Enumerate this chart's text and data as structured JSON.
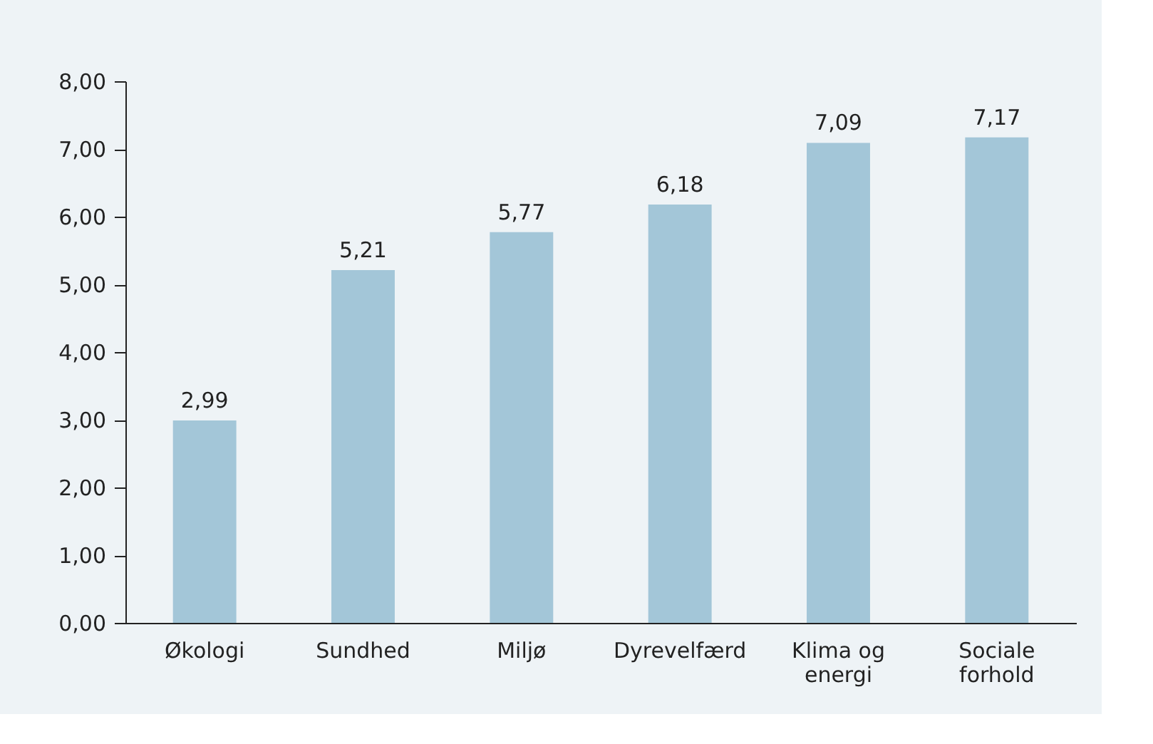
{
  "chart_data": {
    "type": "bar",
    "categories": [
      "Økologi",
      "Sundhed",
      "Miljø",
      "Dyrevelfærd",
      "Klima og energi",
      "Sociale forhold"
    ],
    "values": [
      2.99,
      5.21,
      5.77,
      6.18,
      7.09,
      7.17
    ],
    "value_labels": [
      "2,99",
      "5,21",
      "5,77",
      "6,18",
      "7,09",
      "7,17"
    ],
    "color": "#a3c6d8",
    "ylim": [
      0,
      8
    ],
    "yticks": [
      {
        "value": 0,
        "label": "0,00"
      },
      {
        "value": 1,
        "label": "1,00"
      },
      {
        "value": 2,
        "label": "2,00"
      },
      {
        "value": 3,
        "label": "3,00"
      },
      {
        "value": 4,
        "label": "4,00"
      },
      {
        "value": 5,
        "label": "5,00"
      },
      {
        "value": 6,
        "label": "6,00"
      },
      {
        "value": 7,
        "label": "7,00"
      },
      {
        "value": 8,
        "label": "8,00"
      }
    ],
    "grid": false
  }
}
